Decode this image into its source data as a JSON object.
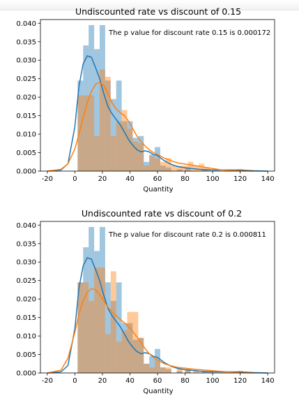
{
  "charts": [
    {
      "type": "histogram+kde",
      "title": "Undiscounted rate vs discount of 0.15",
      "annotation": "The p value for discount rate 0.15 is 0.000172",
      "xlabel": "Quantity",
      "xlim": [
        -25,
        145
      ],
      "ylim": [
        0,
        0.041
      ],
      "xticks": [
        "-20",
        "0",
        "20",
        "40",
        "60",
        "80",
        "100",
        "120",
        "140"
      ],
      "yticks": [
        "0.000",
        "0.005",
        "0.010",
        "0.015",
        "0.020",
        "0.025",
        "0.030",
        "0.035",
        "0.040"
      ],
      "series": [
        {
          "color": "#1f77b4",
          "hist": [
            [
              2,
              6,
              0.0245
            ],
            [
              6,
              10,
              0.034
            ],
            [
              10,
              14,
              0.0395
            ],
            [
              14,
              18,
              0.033
            ],
            [
              18,
              22,
              0.0395
            ],
            [
              22,
              26,
              0.0245
            ],
            [
              26,
              30,
              0.0195
            ],
            [
              30,
              34,
              0.0245
            ],
            [
              34,
              38,
              0.0135
            ],
            [
              38,
              42,
              0.0135
            ],
            [
              42,
              46,
              0.009
            ],
            [
              46,
              50,
              0.0095
            ],
            [
              50,
              54,
              0.0025
            ],
            [
              54,
              58,
              0.0045
            ],
            [
              58,
              62,
              0.0065
            ],
            [
              62,
              66,
              0.0015
            ],
            [
              66,
              70,
              0.001
            ],
            [
              74,
              78,
              0.0005
            ],
            [
              80,
              84,
              0.001
            ],
            [
              92,
              96,
              0.0005
            ],
            [
              118,
              122,
              0.0005
            ]
          ],
          "kde": [
            [
              -20,
              0
            ],
            [
              -10,
              0.0003
            ],
            [
              -5,
              0.002
            ],
            [
              0,
              0.012
            ],
            [
              3,
              0.023
            ],
            [
              6,
              0.029
            ],
            [
              9,
              0.0312
            ],
            [
              12,
              0.0308
            ],
            [
              15,
              0.028
            ],
            [
              18,
              0.025
            ],
            [
              21,
              0.021
            ],
            [
              24,
              0.0175
            ],
            [
              27,
              0.0155
            ],
            [
              30,
              0.014
            ],
            [
              33,
              0.0125
            ],
            [
              36,
              0.0105
            ],
            [
              39,
              0.0085
            ],
            [
              42,
              0.007
            ],
            [
              45,
              0.0058
            ],
            [
              48,
              0.0052
            ],
            [
              51,
              0.0055
            ],
            [
              54,
              0.0052
            ],
            [
              57,
              0.0045
            ],
            [
              60,
              0.0042
            ],
            [
              65,
              0.0028
            ],
            [
              70,
              0.0018
            ],
            [
              75,
              0.0012
            ],
            [
              80,
              0.0009
            ],
            [
              90,
              0.0005
            ],
            [
              100,
              0.0003
            ],
            [
              110,
              0.0003
            ],
            [
              120,
              0.0003
            ],
            [
              130,
              0.0001
            ],
            [
              140,
              0
            ]
          ]
        },
        {
          "color": "#ff7f0e",
          "hist": [
            [
              2,
              8,
              0.0205
            ],
            [
              8,
              14,
              0.0205
            ],
            [
              14,
              18,
              0.0095
            ],
            [
              18,
              22,
              0.0275
            ],
            [
              22,
              26,
              0.0255
            ],
            [
              26,
              30,
              0.0095
            ],
            [
              30,
              34,
              0.0135
            ],
            [
              34,
              38,
              0.0165
            ],
            [
              38,
              42,
              0.0115
            ],
            [
              42,
              46,
              0.008
            ],
            [
              46,
              50,
              0.0075
            ],
            [
              50,
              54,
              0.0015
            ],
            [
              54,
              58,
              0.004
            ],
            [
              58,
              62,
              0.0035
            ],
            [
              62,
              66,
              0.0025
            ],
            [
              66,
              70,
              0.0035
            ],
            [
              70,
              74,
              0.0015
            ],
            [
              74,
              78,
              0.0015
            ],
            [
              78,
              82,
              0.0015
            ],
            [
              82,
              86,
              0.0025
            ],
            [
              86,
              90,
              0.0015
            ],
            [
              90,
              94,
              0.002
            ],
            [
              94,
              98,
              0.001
            ]
          ],
          "kde": [
            [
              -20,
              0
            ],
            [
              -10,
              0.0005
            ],
            [
              -5,
              0.002
            ],
            [
              0,
              0.006
            ],
            [
              3,
              0.01
            ],
            [
              6,
              0.0145
            ],
            [
              9,
              0.0185
            ],
            [
              12,
              0.0215
            ],
            [
              15,
              0.0235
            ],
            [
              18,
              0.024
            ],
            [
              21,
              0.0232
            ],
            [
              24,
              0.021
            ],
            [
              27,
              0.0185
            ],
            [
              30,
              0.0168
            ],
            [
              33,
              0.0158
            ],
            [
              36,
              0.015
            ],
            [
              39,
              0.0135
            ],
            [
              42,
              0.0115
            ],
            [
              45,
              0.0095
            ],
            [
              48,
              0.008
            ],
            [
              51,
              0.0068
            ],
            [
              54,
              0.0058
            ],
            [
              57,
              0.005
            ],
            [
              60,
              0.0045
            ],
            [
              65,
              0.0035
            ],
            [
              70,
              0.0028
            ],
            [
              75,
              0.0022
            ],
            [
              80,
              0.0019
            ],
            [
              85,
              0.0016
            ],
            [
              90,
              0.0013
            ],
            [
              95,
              0.001
            ],
            [
              100,
              0.0007
            ],
            [
              105,
              0.0004
            ],
            [
              110,
              0.0002
            ],
            [
              120,
              0.0001
            ],
            [
              130,
              0
            ]
          ]
        }
      ]
    },
    {
      "type": "histogram+kde",
      "title": "Undiscounted rate vs discount of 0.2",
      "annotation": "The p value for discount rate 0.2 is 0.000811",
      "xlabel": "Quantity",
      "xlim": [
        -25,
        145
      ],
      "ylim": [
        0,
        0.041
      ],
      "xticks": [
        "-20",
        "0",
        "20",
        "40",
        "60",
        "80",
        "100",
        "120",
        "140"
      ],
      "yticks": [
        "0.000",
        "0.005",
        "0.010",
        "0.015",
        "0.020",
        "0.025",
        "0.030",
        "0.035",
        "0.040"
      ],
      "series": [
        {
          "color": "#1f77b4",
          "hist": [
            [
              2,
              6,
              0.0245
            ],
            [
              6,
              10,
              0.034
            ],
            [
              10,
              14,
              0.0395
            ],
            [
              14,
              18,
              0.033
            ],
            [
              18,
              22,
              0.0395
            ],
            [
              22,
              26,
              0.0245
            ],
            [
              26,
              30,
              0.0195
            ],
            [
              30,
              34,
              0.0245
            ],
            [
              34,
              38,
              0.0135
            ],
            [
              38,
              42,
              0.0135
            ],
            [
              42,
              46,
              0.009
            ],
            [
              46,
              50,
              0.0095
            ],
            [
              50,
              54,
              0.0025
            ],
            [
              54,
              58,
              0.0045
            ],
            [
              58,
              62,
              0.0065
            ],
            [
              62,
              66,
              0.0015
            ],
            [
              66,
              70,
              0.001
            ],
            [
              74,
              78,
              0.0005
            ],
            [
              80,
              84,
              0.001
            ],
            [
              92,
              96,
              0.0005
            ],
            [
              118,
              122,
              0.0005
            ]
          ],
          "kde": [
            [
              -20,
              0
            ],
            [
              -10,
              0.0003
            ],
            [
              -5,
              0.002
            ],
            [
              0,
              0.012
            ],
            [
              3,
              0.023
            ],
            [
              6,
              0.029
            ],
            [
              9,
              0.0312
            ],
            [
              12,
              0.0308
            ],
            [
              15,
              0.028
            ],
            [
              18,
              0.025
            ],
            [
              21,
              0.021
            ],
            [
              24,
              0.0175
            ],
            [
              27,
              0.0155
            ],
            [
              30,
              0.014
            ],
            [
              33,
              0.0125
            ],
            [
              36,
              0.0105
            ],
            [
              39,
              0.0085
            ],
            [
              42,
              0.007
            ],
            [
              45,
              0.0058
            ],
            [
              48,
              0.0052
            ],
            [
              51,
              0.0055
            ],
            [
              54,
              0.0052
            ],
            [
              57,
              0.0045
            ],
            [
              60,
              0.0042
            ],
            [
              65,
              0.0028
            ],
            [
              70,
              0.0018
            ],
            [
              75,
              0.0012
            ],
            [
              80,
              0.0009
            ],
            [
              90,
              0.0005
            ],
            [
              100,
              0.0003
            ],
            [
              110,
              0.0003
            ],
            [
              120,
              0.0003
            ],
            [
              130,
              0.0001
            ],
            [
              140,
              0
            ]
          ]
        },
        {
          "color": "#ff7f0e",
          "hist": [
            [
              2,
              10,
              0.0245
            ],
            [
              10,
              14,
              0.0195
            ],
            [
              14,
              18,
              0.0285
            ],
            [
              18,
              22,
              0.0285
            ],
            [
              22,
              26,
              0.0105
            ],
            [
              26,
              30,
              0.0275
            ],
            [
              30,
              34,
              0.0085
            ],
            [
              34,
              38,
              0.0115
            ],
            [
              38,
              42,
              0.0165
            ],
            [
              42,
              46,
              0.0165
            ],
            [
              46,
              50,
              0.0095
            ],
            [
              50,
              54,
              0.0025
            ],
            [
              54,
              58,
              0.0015
            ],
            [
              58,
              62,
              0.0035
            ],
            [
              62,
              66,
              0.0015
            ],
            [
              66,
              70,
              0.0015
            ],
            [
              74,
              78,
              0.0015
            ],
            [
              80,
              84,
              0.001
            ],
            [
              86,
              90,
              0.001
            ],
            [
              96,
              100,
              0.0005
            ],
            [
              106,
              110,
              0.0005
            ]
          ],
          "kde": [
            [
              -20,
              0
            ],
            [
              -10,
              0.0008
            ],
            [
              -5,
              0.004
            ],
            [
              0,
              0.011
            ],
            [
              3,
              0.016
            ],
            [
              6,
              0.0195
            ],
            [
              9,
              0.0218
            ],
            [
              12,
              0.0228
            ],
            [
              15,
              0.0225
            ],
            [
              18,
              0.0212
            ],
            [
              21,
              0.0195
            ],
            [
              24,
              0.0178
            ],
            [
              27,
              0.0165
            ],
            [
              30,
              0.0155
            ],
            [
              33,
              0.0145
            ],
            [
              36,
              0.0135
            ],
            [
              39,
              0.0125
            ],
            [
              42,
              0.0112
            ],
            [
              45,
              0.0098
            ],
            [
              48,
              0.0082
            ],
            [
              51,
              0.0066
            ],
            [
              54,
              0.0052
            ],
            [
              57,
              0.0042
            ],
            [
              60,
              0.0035
            ],
            [
              65,
              0.0025
            ],
            [
              70,
              0.0019
            ],
            [
              75,
              0.0015
            ],
            [
              80,
              0.0013
            ],
            [
              85,
              0.0011
            ],
            [
              90,
              0.0009
            ],
            [
              100,
              0.0006
            ],
            [
              110,
              0.0003
            ],
            [
              120,
              0.0001
            ],
            [
              130,
              0
            ]
          ]
        }
      ]
    }
  ]
}
